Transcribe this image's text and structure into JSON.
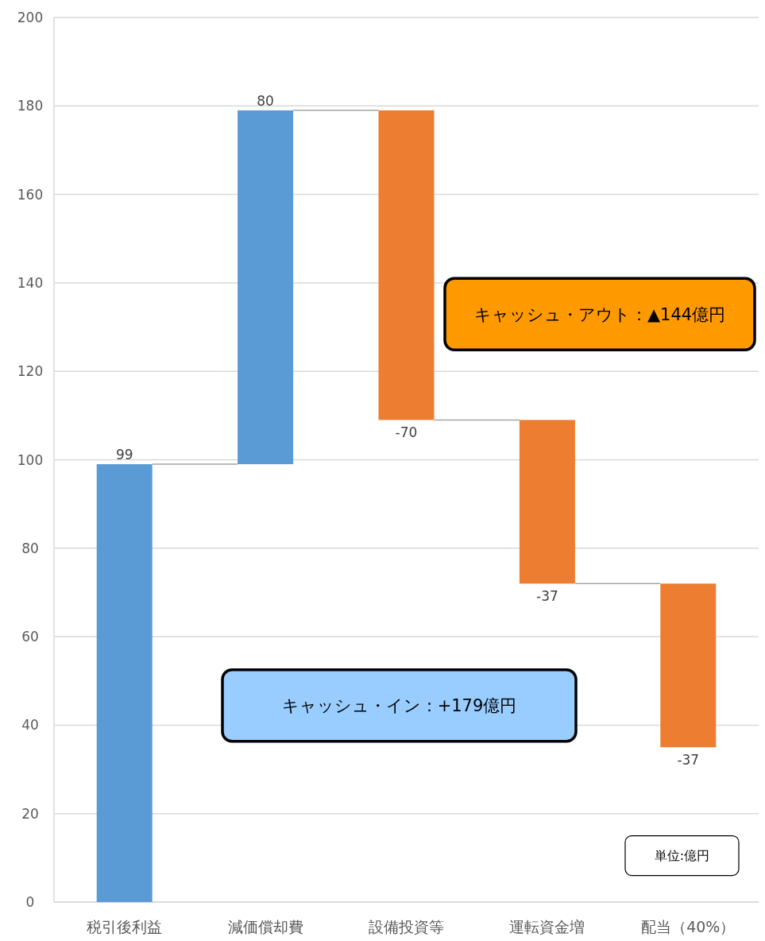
{
  "chart_data": {
    "type": "bar",
    "categories": [
      "税引後利益",
      "減価償却費",
      "設備投資等",
      "運転資金増",
      "配当（40%）"
    ],
    "values": [
      99,
      80,
      -70,
      -37,
      -37
    ],
    "base": [
      0,
      99,
      179,
      109,
      72
    ],
    "colors": [
      "#5b9bd5",
      "#5b9bd5",
      "#ed7d31",
      "#ed7d31",
      "#ed7d31"
    ],
    "data_labels": true,
    "ylim": [
      0,
      200
    ],
    "yticks": [
      0,
      20,
      40,
      60,
      80,
      100,
      120,
      140,
      160,
      180,
      200
    ],
    "grid": "y",
    "annotations": [
      "キャッシュ・アウト：▲144億円",
      "キャッシュ・イン：+179億円",
      "単位:億円"
    ]
  }
}
